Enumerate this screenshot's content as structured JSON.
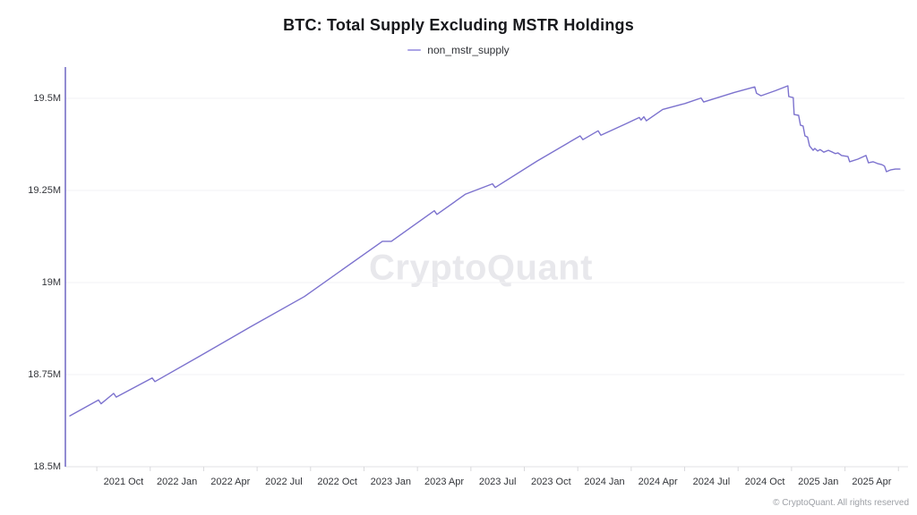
{
  "page_title": "BTC: Total Supply Excluding MSTR Holdings",
  "legend": {
    "label": "non_mstr_supply",
    "marker_color": "#aba4e6"
  },
  "watermark": {
    "text": "CryptoQuant"
  },
  "footer": {
    "copyright": "© CryptoQuant. All rights reserved"
  },
  "colors": {
    "line": "#7c72ce",
    "y_axis_line": "#6f66c4",
    "x_axis_line": "#e2e2e4",
    "gridline": "#f2f2f4",
    "tick_mark": "#d9d9dc"
  },
  "chart_data": {
    "type": "line",
    "title": "BTC: Total Supply Excluding MSTR Holdings",
    "xlabel": "",
    "ylabel": "",
    "legend_position": "top",
    "grid": "horizontal",
    "x_range": [
      2021.478,
      2025.42
    ],
    "y_range": [
      18.5,
      19.585
    ],
    "y_ticks": [
      {
        "value": 19.5,
        "label": "19.5M"
      },
      {
        "value": 19.25,
        "label": "19.25M"
      },
      {
        "value": 19.0,
        "label": "19M"
      },
      {
        "value": 18.75,
        "label": "18.75M"
      },
      {
        "value": 18.5,
        "label": "18.5M"
      }
    ],
    "x_ticks": [
      {
        "value": 2021.75,
        "label": "2021 Oct"
      },
      {
        "value": 2022.0,
        "label": "2022 Jan"
      },
      {
        "value": 2022.25,
        "label": "2022 Apr"
      },
      {
        "value": 2022.5,
        "label": "2022 Jul"
      },
      {
        "value": 2022.75,
        "label": "2022 Oct"
      },
      {
        "value": 2023.0,
        "label": "2023 Jan"
      },
      {
        "value": 2023.25,
        "label": "2023 Apr"
      },
      {
        "value": 2023.5,
        "label": "2023 Jul"
      },
      {
        "value": 2023.75,
        "label": "2023 Oct"
      },
      {
        "value": 2024.0,
        "label": "2024 Jan"
      },
      {
        "value": 2024.25,
        "label": "2024 Apr"
      },
      {
        "value": 2024.5,
        "label": "2024 Jul"
      },
      {
        "value": 2024.75,
        "label": "2024 Oct"
      },
      {
        "value": 2025.0,
        "label": "2025 Jan"
      },
      {
        "value": 2025.25,
        "label": "2025 Apr"
      }
    ],
    "series": [
      {
        "name": "non_mstr_supply",
        "points": [
          [
            2021.499,
            18.638
          ],
          [
            2021.633,
            18.681
          ],
          [
            2021.645,
            18.671
          ],
          [
            2021.704,
            18.699
          ],
          [
            2021.716,
            18.689
          ],
          [
            2021.884,
            18.741
          ],
          [
            2021.897,
            18.731
          ],
          [
            2022.106,
            18.8
          ],
          [
            2022.345,
            18.88
          ],
          [
            2022.596,
            18.962
          ],
          [
            2022.961,
            19.112
          ],
          [
            2023.003,
            19.112
          ],
          [
            2023.204,
            19.195
          ],
          [
            2023.216,
            19.185
          ],
          [
            2023.35,
            19.24
          ],
          [
            2023.476,
            19.268
          ],
          [
            2023.489,
            19.258
          ],
          [
            2023.685,
            19.33
          ],
          [
            2023.886,
            19.398
          ],
          [
            2023.899,
            19.388
          ],
          [
            2023.97,
            19.412
          ],
          [
            2023.983,
            19.4
          ],
          [
            2024.104,
            19.432
          ],
          [
            2024.163,
            19.448
          ],
          [
            2024.171,
            19.441
          ],
          [
            2024.184,
            19.45
          ],
          [
            2024.196,
            19.439
          ],
          [
            2024.272,
            19.47
          ],
          [
            2024.376,
            19.486
          ],
          [
            2024.452,
            19.501
          ],
          [
            2024.464,
            19.49
          ],
          [
            2024.607,
            19.516
          ],
          [
            2024.703,
            19.531
          ],
          [
            2024.711,
            19.514
          ],
          [
            2024.732,
            19.507
          ],
          [
            2024.8,
            19.521
          ],
          [
            2024.858,
            19.534
          ],
          [
            2024.862,
            19.505
          ],
          [
            2024.883,
            19.502
          ],
          [
            2024.887,
            19.456
          ],
          [
            2024.908,
            19.454
          ],
          [
            2024.917,
            19.427
          ],
          [
            2024.929,
            19.425
          ],
          [
            2024.938,
            19.398
          ],
          [
            2024.95,
            19.395
          ],
          [
            2024.959,
            19.371
          ],
          [
            2024.976,
            19.359
          ],
          [
            2024.984,
            19.364
          ],
          [
            2024.997,
            19.357
          ],
          [
            2025.009,
            19.361
          ],
          [
            2025.026,
            19.354
          ],
          [
            2025.047,
            19.359
          ],
          [
            2025.067,
            19.354
          ],
          [
            2025.08,
            19.35
          ],
          [
            2025.092,
            19.352
          ],
          [
            2025.109,
            19.345
          ],
          [
            2025.139,
            19.342
          ],
          [
            2025.147,
            19.328
          ],
          [
            2025.185,
            19.335
          ],
          [
            2025.223,
            19.345
          ],
          [
            2025.235,
            19.325
          ],
          [
            2025.256,
            19.328
          ],
          [
            2025.277,
            19.323
          ],
          [
            2025.298,
            19.32
          ],
          [
            2025.31,
            19.316
          ],
          [
            2025.319,
            19.301
          ],
          [
            2025.34,
            19.306
          ],
          [
            2025.361,
            19.308
          ],
          [
            2025.382,
            19.308
          ]
        ]
      }
    ]
  }
}
